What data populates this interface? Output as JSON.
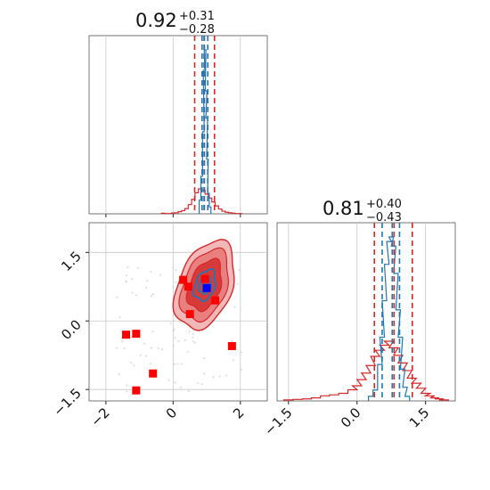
{
  "chart_data": {
    "type": "corner",
    "parameters": [
      {
        "title_value": "0.92",
        "title_plus": "+0.31",
        "title_minus": "−0.28",
        "red_quantiles": [
          0.64,
          0.92,
          1.23
        ],
        "blue_quantiles": [
          0.86,
          0.93,
          1.03
        ]
      },
      {
        "title_value": "0.81",
        "title_plus": "+0.40",
        "title_minus": "−0.43",
        "red_quantiles": [
          0.38,
          0.81,
          1.21
        ],
        "blue_quantiles": [
          0.55,
          0.77,
          0.93
        ]
      }
    ],
    "x_axis": {
      "range": [
        -2.5,
        2.8
      ],
      "ticks": [
        -2,
        0,
        2
      ],
      "tick_labels": [
        "−2",
        "0",
        "2"
      ]
    },
    "y_axis": {
      "range": [
        -1.75,
        2.15
      ],
      "ticks": [
        -1.5,
        0.0,
        1.5
      ],
      "tick_labels": [
        "−1.5",
        "0.0",
        "1.5"
      ]
    },
    "x2_axis": {
      "range": [
        -1.75,
        2.15
      ],
      "ticks": [
        -1.5,
        0.0,
        1.5
      ],
      "tick_labels": [
        "−1.5",
        "0.0",
        "1.5"
      ]
    },
    "hist1": {
      "x": [
        -0.3,
        -0.2,
        -0.1,
        0.0,
        0.1,
        0.2,
        0.3,
        0.4,
        0.5,
        0.6,
        0.7,
        0.8,
        0.9,
        1.0,
        1.1,
        1.2,
        1.3,
        1.4,
        1.5,
        1.6,
        1.7,
        1.8,
        1.9,
        2.0
      ],
      "red": [
        2,
        1,
        1,
        3,
        4,
        8,
        12,
        20,
        35,
        55,
        80,
        95,
        90,
        75,
        60,
        45,
        30,
        18,
        10,
        6,
        4,
        2,
        1,
        1
      ],
      "blue_x": [
        0.8,
        0.85,
        0.9,
        0.92,
        0.95,
        0.98,
        1.0,
        1.02,
        1.05,
        1.1
      ],
      "blue": [
        20,
        55,
        120,
        210,
        240,
        180,
        140,
        80,
        30,
        10
      ]
    },
    "hist2": {
      "x": [
        -1.5,
        -1.3,
        -1.1,
        -0.9,
        -0.7,
        -0.5,
        -0.3,
        -0.1,
        0.0,
        0.1,
        0.2,
        0.3,
        0.4,
        0.5,
        0.6,
        0.7,
        0.8,
        0.9,
        1.0,
        1.1,
        1.2,
        1.3,
        1.4,
        1.5,
        1.6,
        1.7,
        1.8,
        1.9
      ],
      "red": [
        2,
        3,
        4,
        6,
        10,
        12,
        15,
        22,
        30,
        42,
        55,
        70,
        88,
        100,
        110,
        118,
        105,
        90,
        75,
        60,
        45,
        35,
        25,
        15,
        10,
        6,
        4,
        2
      ],
      "blue_x": [
        0.3,
        0.4,
        0.5,
        0.55,
        0.6,
        0.65,
        0.7,
        0.75,
        0.8,
        0.85,
        0.9,
        0.95,
        1.0,
        1.05,
        1.1
      ],
      "blue": [
        5,
        12,
        40,
        70,
        110,
        150,
        175,
        180,
        170,
        140,
        100,
        70,
        35,
        15,
        5
      ]
    },
    "scatter_2d": {
      "red_squares": [
        [
          0.3,
          0.9
        ],
        [
          0.45,
          0.75
        ],
        [
          0.95,
          0.92
        ],
        [
          1.25,
          0.45
        ],
        [
          0.5,
          0.15
        ],
        [
          -1.4,
          -0.3
        ],
        [
          -1.1,
          -0.28
        ],
        [
          -0.6,
          -1.15
        ],
        [
          -1.1,
          -1.52
        ],
        [
          1.75,
          -0.55
        ]
      ],
      "blue_square": [
        1.0,
        0.72
      ],
      "center": [
        0.95,
        0.78
      ]
    },
    "colors": {
      "red": "#d62728",
      "red_fill_light": "#f2b8b8",
      "red_fill_mid": "#e88080",
      "red_fill_dark": "#d83a3a",
      "blue": "#1f77b4",
      "blue_marker": "#0000ff",
      "marker_red": "#ff0000",
      "grid": "#c8c8c8"
    }
  }
}
